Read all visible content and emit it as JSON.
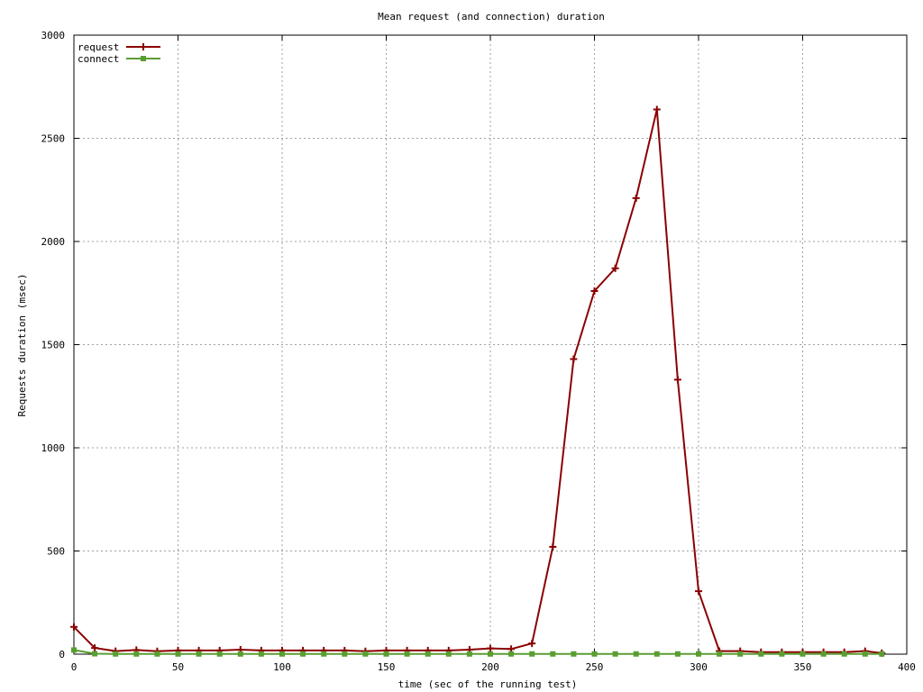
{
  "chart_data": {
    "type": "line",
    "title": "Mean request (and connection) duration",
    "xlabel": "time (sec of the running test)",
    "ylabel": "Requests duration (msec)",
    "xlim": [
      0,
      400
    ],
    "ylim": [
      0,
      3000
    ],
    "xticks": [
      0,
      50,
      100,
      150,
      200,
      250,
      300,
      350,
      400
    ],
    "yticks": [
      0,
      500,
      1000,
      1500,
      2000,
      2500,
      3000
    ],
    "grid": true,
    "legend_position": "top-left",
    "series": [
      {
        "name": "request",
        "color": "#8b0000",
        "marker": "plus",
        "x": [
          0,
          10,
          20,
          30,
          40,
          50,
          60,
          70,
          80,
          90,
          100,
          110,
          120,
          130,
          140,
          150,
          160,
          170,
          180,
          190,
          200,
          210,
          220,
          230,
          240,
          250,
          260,
          270,
          280,
          290,
          300,
          310,
          320,
          330,
          340,
          350,
          360,
          370,
          380,
          388
        ],
        "y": [
          132,
          30,
          15,
          20,
          14,
          18,
          18,
          18,
          22,
          18,
          18,
          18,
          18,
          18,
          14,
          18,
          18,
          18,
          18,
          22,
          28,
          25,
          52,
          520,
          1430,
          1760,
          1870,
          2210,
          2640,
          1330,
          305,
          15,
          15,
          10,
          10,
          10,
          10,
          10,
          15,
          5
        ]
      },
      {
        "name": "connect",
        "color": "#5a9e32",
        "marker": "square",
        "x": [
          0,
          10,
          20,
          30,
          40,
          50,
          60,
          70,
          80,
          90,
          100,
          110,
          120,
          130,
          140,
          150,
          160,
          170,
          180,
          190,
          200,
          210,
          220,
          230,
          240,
          250,
          260,
          270,
          280,
          290,
          300,
          310,
          320,
          330,
          340,
          350,
          360,
          370,
          380,
          388
        ],
        "y": [
          20,
          2,
          1,
          1,
          1,
          1,
          1,
          1,
          1,
          1,
          1,
          1,
          1,
          1,
          1,
          1,
          1,
          1,
          1,
          1,
          1,
          1,
          1,
          1,
          1,
          1,
          1,
          1,
          1,
          1,
          1,
          1,
          1,
          1,
          1,
          1,
          1,
          1,
          1,
          1
        ]
      }
    ]
  }
}
